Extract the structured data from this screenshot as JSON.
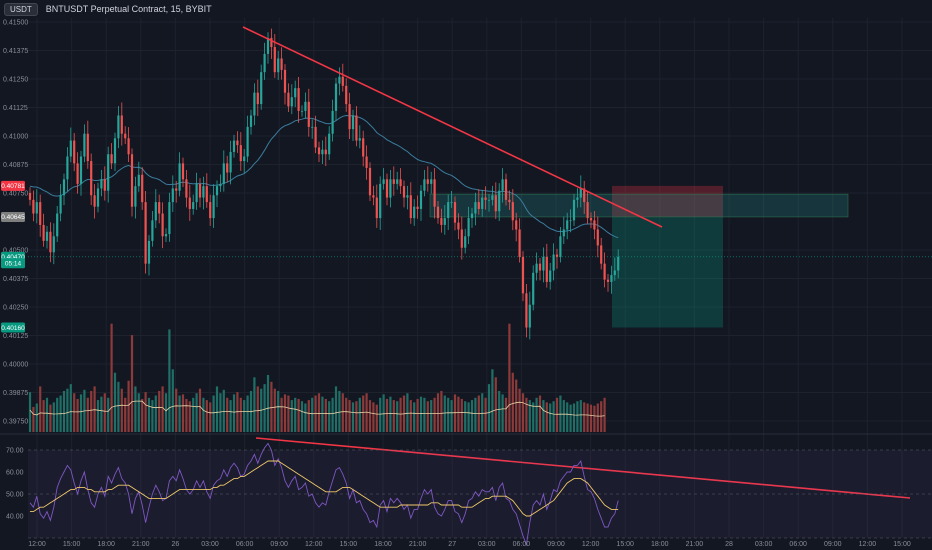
{
  "header": {
    "currency_button": "USDT",
    "symbol_title": "BNTUSDT Perpetual Contract, 15, BYBIT"
  },
  "chart_data": {
    "type": "candlestick",
    "symbol": "BNTUSDT",
    "interval": "15",
    "exchange": "BYBIT",
    "price_ticks": [
      "0.41500",
      "0.41375",
      "0.41250",
      "0.41125",
      "0.41000",
      "0.40875",
      "0.40750",
      "0.40500",
      "0.40375",
      "0.40250",
      "0.40125",
      "0.40000",
      "0.39875",
      "0.39750"
    ],
    "rsi_ticks": [
      "70.00",
      "60.00",
      "50.00",
      "40.00"
    ],
    "time_ticks": [
      "12:00",
      "15:00",
      "18:00",
      "21:00",
      "26",
      "03:00",
      "06:00",
      "09:00",
      "12:00",
      "15:00",
      "18:00",
      "21:00",
      "27",
      "03:00",
      "06:00",
      "09:00",
      "12:00",
      "15:00",
      "18:00",
      "21:00",
      "28",
      "03:00",
      "06:00",
      "09:00",
      "12:00",
      "15:00"
    ],
    "price_tags": [
      {
        "label": "0.40781",
        "color": "#f23645",
        "price": 0.40781
      },
      {
        "label": "0.40645",
        "color": "#7f7f7f",
        "price": 0.40645
      },
      {
        "label": "0.40470",
        "color": "#089981",
        "price": 0.4047
      },
      {
        "label": "05:14",
        "color": "#089981",
        "price": 0.40442
      },
      {
        "label": "0.40160",
        "color": "#089981",
        "price": 0.4016
      }
    ],
    "candles_close": [
      0.4072,
      0.4066,
      0.4071,
      0.4061,
      0.4054,
      0.4058,
      0.4049,
      0.4056,
      0.4066,
      0.4074,
      0.4081,
      0.4091,
      0.4098,
      0.4088,
      0.4079,
      0.4091,
      0.4101,
      0.4089,
      0.4074,
      0.4069,
      0.4077,
      0.4081,
      0.4076,
      0.4092,
      0.4088,
      0.4099,
      0.4109,
      0.4101,
      0.4099,
      0.4092,
      0.4069,
      0.4078,
      0.4083,
      0.4071,
      0.4044,
      0.4054,
      0.4063,
      0.4071,
      0.4066,
      0.4056,
      0.4057,
      0.4071,
      0.4077,
      0.4076,
      0.4088,
      0.4081,
      0.4073,
      0.4068,
      0.4071,
      0.4079,
      0.4073,
      0.4078,
      0.4071,
      0.4064,
      0.4074,
      0.4078,
      0.4079,
      0.4088,
      0.4084,
      0.4093,
      0.4098,
      0.4096,
      0.4089,
      0.4091,
      0.4104,
      0.4109,
      0.4119,
      0.4114,
      0.4128,
      0.4136,
      0.4143,
      0.4139,
      0.4128,
      0.4134,
      0.4129,
      0.4119,
      0.4113,
      0.4117,
      0.4121,
      0.4111,
      0.4111,
      0.4115,
      0.4104,
      0.4104,
      0.4095,
      0.4092,
      0.4094,
      0.4092,
      0.4101,
      0.4111,
      0.4123,
      0.4126,
      0.4122,
      0.4114,
      0.4103,
      0.4109,
      0.4098,
      0.4099,
      0.4091,
      0.4086,
      0.4074,
      0.4073,
      0.4064,
      0.4079,
      0.4081,
      0.4073,
      0.4081,
      0.4079,
      0.4081,
      0.4078,
      0.4073,
      0.4074,
      0.4064,
      0.4069,
      0.4068,
      0.4076,
      0.4081,
      0.4079,
      0.4081,
      0.4069,
      0.4064,
      0.4061,
      0.4064,
      0.4071,
      0.4071,
      0.4062,
      0.4059,
      0.4051,
      0.4056,
      0.4064,
      0.4066,
      0.4071,
      0.4068,
      0.4073,
      0.4072,
      0.4072,
      0.4074,
      0.4067,
      0.4076,
      0.4081,
      0.4072,
      0.4071,
      0.4063,
      0.4059,
      0.4047,
      0.4031,
      0.4016,
      0.4026,
      0.404,
      0.4044,
      0.4041,
      0.4047,
      0.4036,
      0.4041,
      0.4048,
      0.4047,
      0.4056,
      0.4059,
      0.4063,
      0.4063,
      0.4072,
      0.4073,
      0.4077,
      0.4071,
      0.4064,
      0.4063,
      0.4059,
      0.4052,
      0.4044,
      0.4037,
      0.4036,
      0.4039,
      0.4041,
      0.4047
    ],
    "volume": [
      35,
      22,
      25,
      40,
      28,
      30,
      24,
      26,
      30,
      32,
      36,
      38,
      42,
      34,
      29,
      33,
      37,
      30,
      36,
      40,
      28,
      31,
      34,
      30,
      95,
      52,
      44,
      38,
      30,
      45,
      85,
      40,
      34,
      29,
      35,
      30,
      28,
      32,
      36,
      40,
      34,
      90,
      55,
      38,
      32,
      33,
      29,
      27,
      30,
      34,
      38,
      30,
      28,
      26,
      32,
      40,
      34,
      37,
      30,
      28,
      33,
      35,
      30,
      28,
      32,
      36,
      48,
      40,
      38,
      42,
      50,
      44,
      38,
      36,
      30,
      33,
      32,
      28,
      30,
      29,
      27,
      25,
      28,
      30,
      32,
      34,
      31,
      29,
      27,
      30,
      40,
      36,
      34,
      30,
      28,
      26,
      27,
      30,
      32,
      34,
      28,
      26,
      24,
      30,
      33,
      29,
      31,
      28,
      27,
      30,
      32,
      34,
      28,
      26,
      29,
      31,
      30,
      27,
      28,
      30,
      34,
      36,
      32,
      30,
      28,
      33,
      31,
      29,
      27,
      26,
      28,
      30,
      32,
      34,
      30,
      42,
      55,
      48,
      36,
      33,
      30,
      95,
      52,
      46,
      38,
      34,
      30,
      28,
      26,
      30,
      32,
      28,
      26,
      25,
      27,
      30,
      32,
      28,
      26,
      24,
      25,
      27,
      28,
      26,
      25,
      24,
      23,
      25,
      27,
      30
    ],
    "rsi": [
      46,
      44,
      49,
      41,
      39,
      42,
      38,
      44,
      53,
      57,
      60,
      63,
      61,
      55,
      50,
      56,
      60,
      52,
      46,
      44,
      50,
      53,
      49,
      58,
      55,
      59,
      62,
      57,
      55,
      50,
      41,
      48,
      51,
      45,
      37,
      44,
      50,
      54,
      51,
      47,
      48,
      56,
      58,
      56,
      61,
      57,
      52,
      50,
      52,
      56,
      53,
      56,
      51,
      48,
      54,
      56,
      57,
      61,
      58,
      62,
      64,
      62,
      58,
      59,
      63,
      65,
      68,
      64,
      68,
      71,
      73,
      70,
      63,
      66,
      62,
      56,
      53,
      56,
      58,
      52,
      53,
      55,
      49,
      50,
      46,
      44,
      46,
      45,
      51,
      56,
      61,
      62,
      59,
      55,
      48,
      52,
      46,
      47,
      43,
      41,
      37,
      38,
      35,
      45,
      47,
      42,
      48,
      46,
      48,
      46,
      43,
      45,
      39,
      43,
      43,
      48,
      52,
      50,
      52,
      44,
      41,
      40,
      43,
      47,
      47,
      42,
      41,
      37,
      41,
      47,
      48,
      51,
      49,
      52,
      51,
      51,
      53,
      47,
      53,
      55,
      48,
      47,
      43,
      41,
      36,
      31,
      27,
      37,
      45,
      47,
      45,
      50,
      43,
      47,
      52,
      51,
      56,
      58,
      60,
      60,
      63,
      63,
      65,
      58,
      52,
      51,
      48,
      43,
      39,
      35,
      35,
      39,
      41,
      47
    ],
    "rsi_ma": [
      42,
      42,
      43,
      44,
      44,
      45,
      46,
      47,
      48,
      49,
      50,
      51,
      52,
      52,
      53,
      53,
      53,
      52,
      52,
      51,
      51,
      51,
      51,
      52,
      52,
      53,
      54,
      54,
      54,
      54,
      53,
      52,
      51,
      50,
      49,
      48,
      48,
      48,
      48,
      48,
      48,
      49,
      50,
      51,
      52,
      52,
      52,
      52,
      52,
      52,
      52,
      52,
      52,
      52,
      53,
      53,
      54,
      54,
      55,
      56,
      57,
      57,
      58,
      58,
      59,
      60,
      61,
      62,
      63,
      64,
      65,
      65,
      65,
      65,
      64,
      63,
      62,
      61,
      60,
      59,
      58,
      57,
      56,
      55,
      54,
      53,
      52,
      51,
      51,
      51,
      51,
      52,
      53,
      53,
      53,
      52,
      51,
      50,
      49,
      48,
      47,
      46,
      45,
      44,
      44,
      44,
      44,
      44,
      44,
      45,
      45,
      45,
      45,
      45,
      45,
      45,
      45,
      45,
      46,
      46,
      46,
      45,
      45,
      45,
      45,
      45,
      45,
      44,
      44,
      44,
      44,
      45,
      46,
      47,
      48,
      48,
      49,
      49,
      49,
      49,
      49,
      48,
      47,
      45,
      43,
      41,
      40,
      40,
      41,
      42,
      43,
      44,
      45,
      46,
      47,
      49,
      51,
      53,
      55,
      56,
      57,
      57,
      57,
      56,
      55,
      53,
      51,
      49,
      47,
      45,
      44,
      43,
      43,
      43
    ],
    "drawings": [
      {
        "name": "price-trendline",
        "color": "#f23645"
      },
      {
        "name": "rsi-trendline",
        "color": "#f23645"
      },
      {
        "name": "short-position-box",
        "stop_color": "#f23645",
        "target_color": "#089981"
      }
    ],
    "colors": {
      "up": "#26a69a",
      "down": "#ef5350",
      "volume_ma": "#e8d3a6",
      "ema": "#3b7d9e",
      "rsi": "#7e57c2",
      "rsi_ma": "#f0c76a"
    }
  }
}
